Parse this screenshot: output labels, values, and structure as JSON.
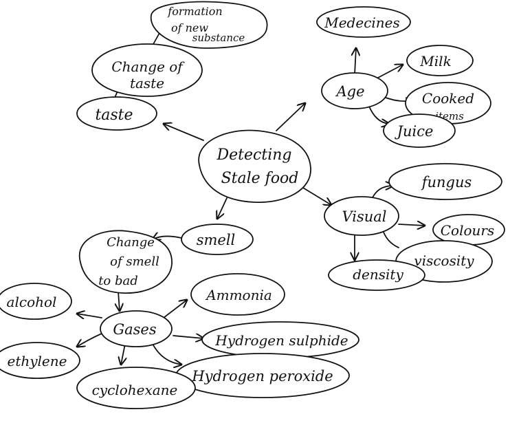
{
  "colors": {
    "ink": "#111111",
    "paper": "#ffffff"
  },
  "nodes": {
    "center": [
      "Detecting",
      "Stale food"
    ],
    "taste": [
      "taste"
    ],
    "change_taste": [
      "Change of",
      "taste"
    ],
    "formation": [
      "formation",
      "of new",
      "substance"
    ],
    "age": [
      "Age"
    ],
    "medicines": [
      "Medecines"
    ],
    "milk": [
      "Milk"
    ],
    "cooked": [
      "Cooked",
      "items"
    ],
    "juice": [
      "Juice"
    ],
    "visual": [
      "Visual"
    ],
    "fungus": [
      "fungus"
    ],
    "colours": [
      "Colours"
    ],
    "viscosity": [
      "viscosity"
    ],
    "density": [
      "density"
    ],
    "smell": [
      "smell"
    ],
    "change_smell": [
      "Change",
      "of smell",
      "to bad"
    ],
    "gases": [
      "Gases"
    ],
    "ammonia": [
      "Ammonia"
    ],
    "h2s": [
      "Hydrogen sulphide"
    ],
    "h2o2": [
      "Hydrogen peroxide"
    ],
    "cyclohexane": [
      "cyclohexane"
    ],
    "ethylene": [
      "ethylene"
    ],
    "alcohol": [
      "alcohol"
    ]
  }
}
